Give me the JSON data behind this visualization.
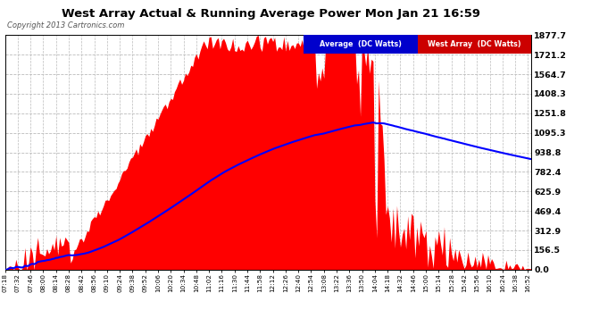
{
  "title": "West Array Actual & Running Average Power Mon Jan 21 16:59",
  "copyright": "Copyright 2013 Cartronics.com",
  "y_ticks": [
    0.0,
    156.5,
    312.9,
    469.4,
    625.9,
    782.4,
    938.8,
    1095.3,
    1251.8,
    1408.3,
    1564.7,
    1721.2,
    1877.7
  ],
  "y_max": 1877.7,
  "legend_avg_label": "Average  (DC Watts)",
  "legend_west_label": "West Array  (DC Watts)",
  "bar_color": "#ff0000",
  "avg_line_color": "#0000ff",
  "grid_color": "#bbbbbb",
  "title_color": "#000000",
  "legend_avg_bg": "#0000cc",
  "legend_west_bg": "#cc0000",
  "x_tick_step_minutes": 14,
  "data_interval_minutes": 2
}
